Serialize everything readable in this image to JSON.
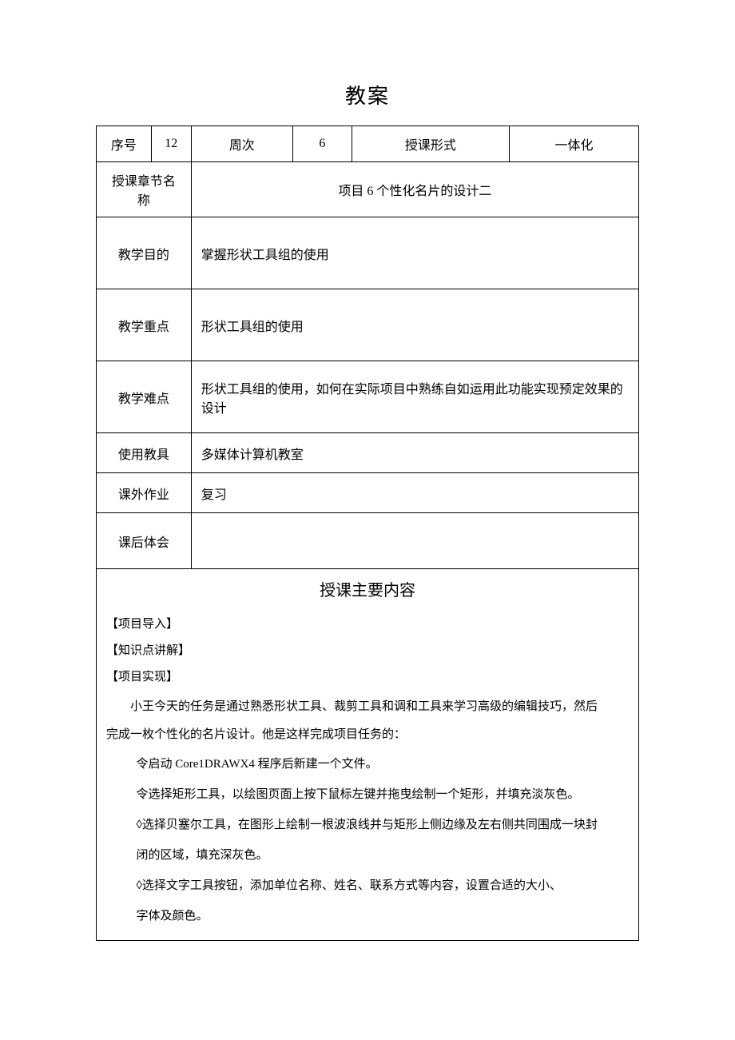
{
  "document": {
    "title": "教案",
    "colors": {
      "text": "#000000",
      "border": "#000000",
      "background": "#ffffff"
    },
    "typography": {
      "title_fontsize": 26,
      "label_fontsize": 18,
      "content_fontsize": 15,
      "body_fontsize": 15,
      "font_family": "SimSun"
    }
  },
  "header_row": {
    "seq_label": "序号",
    "seq_value": "12",
    "week_label": "周次",
    "week_value": "6",
    "form_label": "授课形式",
    "form_value": "一体化"
  },
  "chapter": {
    "label": "授课章节名称",
    "value": "项目 6 个性化名片的设计二"
  },
  "objective": {
    "label": "教学目的",
    "value": "掌握形状工具组的使用"
  },
  "key_point": {
    "label": "教学重点",
    "value": "形状工具组的使用"
  },
  "difficulty": {
    "label": "教学难点",
    "value": "形状工具组的使用，如何在实际项目中熟练自如运用此功能实现预定效果的设计"
  },
  "tools": {
    "label": "使用教具",
    "value": "多媒体计算机教室"
  },
  "homework": {
    "label": "课外作业",
    "value": "复习"
  },
  "reflection": {
    "label": "课后体会",
    "value": ""
  },
  "main_content": {
    "title": "授课主要内容",
    "sections": {
      "intro": "【项目导入】",
      "knowledge": "【知识点讲解】",
      "implement": "【项目实现】"
    },
    "intro_para1": "小王今天的任务是通过熟悉形状工具、裁剪工具和调和工具来学习高级的编辑技巧，然后",
    "intro_para2": "完成一枚个性化的名片设计。他是这样完成项目任务的：",
    "steps": {
      "s1": "令启动 Core1DRAWX4 程序后新建一个文件。",
      "s2": "令选择矩形工具，以绘图页面上按下鼠标左键并拖曳绘制一个矩形，并填充淡灰色。",
      "s3a": "◊选择贝塞尔工具，在图形上绘制一根波浪线并与矩形上侧边缘及左右侧共同围成一块封",
      "s3b": "闭的区域，填充深灰色。",
      "s4a": "◊选择文字工具按钮，添加单位名称、姓名、联系方式等内容，设置合适的大小、",
      "s4b": "字体及颜色。"
    }
  }
}
